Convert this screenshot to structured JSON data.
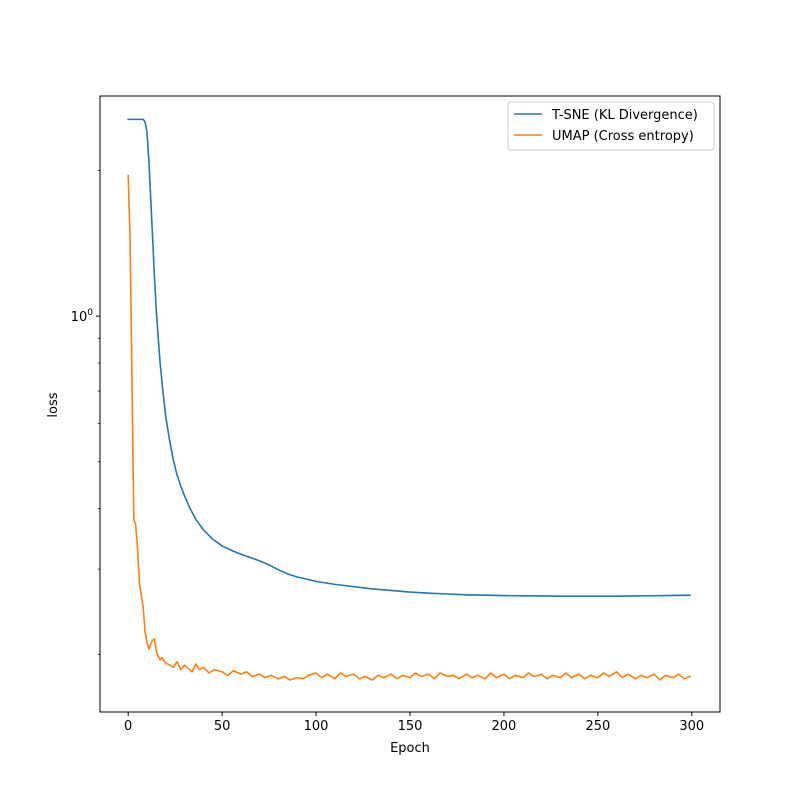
{
  "chart_data": {
    "type": "line",
    "xlabel": "Epoch",
    "ylabel": "loss",
    "y_scale": "log",
    "xlim": [
      -15,
      315
    ],
    "ylim": [
      0.152,
      2.85
    ],
    "x_ticks": [
      0,
      50,
      100,
      150,
      200,
      250,
      300
    ],
    "x_tick_labels": [
      "0",
      "50",
      "100",
      "150",
      "200",
      "250",
      "300"
    ],
    "y_major_ticks": [
      1.0
    ],
    "y_major_tick_labels": [
      {
        "base": "10",
        "exp": "0"
      }
    ],
    "y_minor_ticks": [
      0.2,
      0.3,
      0.4,
      0.5,
      0.6,
      0.7,
      0.8,
      0.9,
      2.0
    ],
    "legend": {
      "position": "upper-right",
      "entries": [
        "T-SNE (KL Divergence)",
        "UMAP (Cross entropy)"
      ]
    },
    "grid": false,
    "series": [
      {
        "name": "T-SNE (KL Divergence)",
        "color": "#1f77b4",
        "x": [
          0,
          5,
          8,
          9,
          10,
          11,
          12,
          13,
          14,
          15,
          16,
          17,
          18,
          19,
          20,
          22,
          24,
          26,
          28,
          30,
          33,
          36,
          40,
          45,
          50,
          55,
          60,
          65,
          70,
          75,
          80,
          85,
          90,
          100,
          110,
          120,
          130,
          140,
          150,
          160,
          170,
          180,
          190,
          200,
          210,
          220,
          230,
          240,
          250,
          260,
          270,
          280,
          290,
          299
        ],
        "values": [
          2.55,
          2.55,
          2.55,
          2.52,
          2.4,
          2.1,
          1.75,
          1.45,
          1.2,
          1.02,
          0.9,
          0.8,
          0.73,
          0.67,
          0.62,
          0.555,
          0.505,
          0.47,
          0.445,
          0.425,
          0.4,
          0.38,
          0.362,
          0.346,
          0.335,
          0.328,
          0.322,
          0.317,
          0.312,
          0.306,
          0.299,
          0.293,
          0.289,
          0.283,
          0.279,
          0.276,
          0.273,
          0.271,
          0.269,
          0.2675,
          0.2665,
          0.2655,
          0.265,
          0.2645,
          0.2642,
          0.264,
          0.2638,
          0.2637,
          0.2637,
          0.2638,
          0.264,
          0.2643,
          0.2647,
          0.265
        ]
      },
      {
        "name": "UMAP (Cross entropy)",
        "color": "#ff7f0e",
        "x": [
          0,
          1,
          2,
          3,
          4,
          5,
          6,
          7,
          8,
          9,
          10,
          11,
          12,
          13,
          14,
          15,
          16,
          17,
          18,
          19,
          20,
          22,
          24,
          26,
          28,
          30,
          32,
          34,
          36,
          38,
          40,
          43,
          46,
          50,
          53,
          56,
          60,
          63,
          66,
          70,
          73,
          76,
          80,
          83,
          86,
          90,
          93,
          96,
          100,
          103,
          106,
          110,
          113,
          116,
          120,
          123,
          126,
          130,
          133,
          136,
          140,
          143,
          146,
          150,
          153,
          156,
          160,
          163,
          166,
          170,
          173,
          176,
          180,
          183,
          186,
          190,
          193,
          196,
          200,
          203,
          206,
          210,
          213,
          216,
          220,
          223,
          226,
          230,
          233,
          236,
          240,
          243,
          246,
          250,
          253,
          256,
          260,
          263,
          266,
          270,
          273,
          276,
          280,
          283,
          286,
          290,
          293,
          296,
          299
        ],
        "values": [
          1.95,
          1.45,
          0.75,
          0.38,
          0.37,
          0.33,
          0.28,
          0.265,
          0.25,
          0.222,
          0.212,
          0.205,
          0.21,
          0.214,
          0.215,
          0.203,
          0.198,
          0.195,
          0.197,
          0.194,
          0.192,
          0.19,
          0.188,
          0.193,
          0.186,
          0.19,
          0.187,
          0.184,
          0.191,
          0.186,
          0.188,
          0.183,
          0.186,
          0.184,
          0.181,
          0.185,
          0.182,
          0.184,
          0.18,
          0.182,
          0.179,
          0.181,
          0.178,
          0.18,
          0.177,
          0.179,
          0.178,
          0.181,
          0.183,
          0.179,
          0.182,
          0.178,
          0.183,
          0.18,
          0.182,
          0.178,
          0.18,
          0.177,
          0.181,
          0.179,
          0.182,
          0.178,
          0.181,
          0.179,
          0.183,
          0.18,
          0.182,
          0.178,
          0.183,
          0.18,
          0.181,
          0.178,
          0.182,
          0.179,
          0.181,
          0.178,
          0.183,
          0.179,
          0.182,
          0.178,
          0.181,
          0.179,
          0.183,
          0.18,
          0.182,
          0.178,
          0.181,
          0.179,
          0.183,
          0.179,
          0.182,
          0.178,
          0.181,
          0.179,
          0.183,
          0.18,
          0.184,
          0.179,
          0.182,
          0.178,
          0.181,
          0.179,
          0.182,
          0.177,
          0.181,
          0.179,
          0.182,
          0.178,
          0.18
        ]
      }
    ]
  }
}
